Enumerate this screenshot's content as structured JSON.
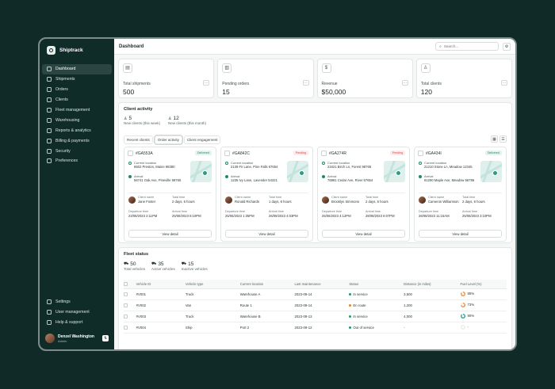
{
  "app": {
    "name": "Shiptrack"
  },
  "sidebar": {
    "items": [
      {
        "label": "Dashboard",
        "icon": "grid-icon"
      },
      {
        "label": "Shipments",
        "icon": "box-icon"
      },
      {
        "label": "Orders",
        "icon": "list-icon"
      },
      {
        "label": "Clients",
        "icon": "user-icon"
      },
      {
        "label": "Fleet management",
        "icon": "truck-icon"
      },
      {
        "label": "Warehousing",
        "icon": "warehouse-icon"
      },
      {
        "label": "Reports & analytics",
        "icon": "chart-icon"
      },
      {
        "label": "Billing & payments",
        "icon": "card-icon"
      },
      {
        "label": "Security",
        "icon": "shield-icon"
      },
      {
        "label": "Preferences",
        "icon": "sliders-icon"
      }
    ],
    "bottom_items": [
      {
        "label": "Settings",
        "icon": "gear-icon"
      },
      {
        "label": "User management",
        "icon": "users-icon"
      },
      {
        "label": "Help & support",
        "icon": "help-icon"
      }
    ],
    "user": {
      "name": "Denzel Washington",
      "role": "Admin"
    }
  },
  "header": {
    "title": "Dashboard",
    "search_placeholder": "Search..."
  },
  "stats": [
    {
      "label": "Total shipments",
      "value": "500"
    },
    {
      "label": "Pending orders",
      "value": "15"
    },
    {
      "label": "Revenue",
      "value": "$50,000"
    },
    {
      "label": "Total clients",
      "value": "120"
    }
  ],
  "activity": {
    "title": "Client activity",
    "counts": [
      {
        "value": "5",
        "label": "New clients (this week)"
      },
      {
        "value": "12",
        "label": "New clients (this month)"
      }
    ],
    "tabs": [
      "Recent clients",
      "Order activity",
      "Client engagement"
    ],
    "orders": [
      {
        "id": "#GA553A",
        "status": "Delivered",
        "current_label": "Current location",
        "current": "6502 Preston, Maine 98380",
        "arrival_label": "Arrival",
        "arrival": "56741 Oak Ave, Pineville 98765",
        "client_label": "Client name",
        "client": "Jane Foster",
        "total_label": "Total time",
        "total": "2 days, 6 hours",
        "departure_label": "Departure time",
        "departure": "23/08/2023 2:11PM",
        "arrival_time_label": "Arrival time",
        "arrival_time": "25/08/2023 8:10PM",
        "button": "View detail"
      },
      {
        "id": "#GA842C",
        "status": "Pending",
        "current_label": "Current location",
        "current": "2139 Fir Lane, Pine Falls 67654",
        "arrival_label": "Arrival",
        "arrival": "1235 Ivy Lane, Lavender 54321",
        "client_label": "Client name",
        "client": "Ronald Richards",
        "total_label": "Total time",
        "total": "1 days, 8 hours",
        "departure_label": "Departure time",
        "departure": "25/06/2023 1:35PM",
        "arrival_time_label": "Arrival time",
        "arrival_time": "26/08/2023 4:03PM",
        "button": "View detail"
      },
      {
        "id": "#GA274R",
        "status": "Pending",
        "current_label": "Current location",
        "current": "23421 Birch Ln, Forest 98765",
        "arrival_label": "Arrival",
        "arrival": "76981 Cedar Ave, River 67654",
        "client_label": "Client name",
        "client": "Brooklyn Simmons",
        "total_label": "Total time",
        "total": "2 days, 6 hours",
        "departure_label": "Departure time",
        "departure": "25/06/2023 4:12PM",
        "arrival_time_label": "Arrival time",
        "arrival_time": "28/08/2023 6:07PM",
        "button": "View detail"
      },
      {
        "id": "#GA434I",
        "status": "Delivered",
        "current_label": "Current location",
        "current": "21210 Stone Ln, Meadow 12345",
        "arrival_label": "Arrival",
        "arrival": "81290 Maple Ave, Meadow 56786",
        "client_label": "Client name",
        "client": "Cameron Williamson",
        "total_label": "Total time",
        "total": "2 days, 6 hours",
        "departure_label": "Departure time",
        "departure": "26/08/2023 11:15AM",
        "arrival_time_label": "Arrival time",
        "arrival_time": "25/08/2023 3:10PM",
        "button": "View detail"
      }
    ]
  },
  "fleet": {
    "title": "Fleet status",
    "counts": [
      {
        "value": "50",
        "label": "Total vehicles"
      },
      {
        "value": "35",
        "label": "Active vehicles"
      },
      {
        "value": "15",
        "label": "Inactive vehicles"
      }
    ],
    "columns": [
      "Vehicle ID",
      "Vehicle type",
      "Current location",
      "Last maintenance",
      "Status",
      "Distance (in miles)",
      "Fuel Level (%)"
    ],
    "rows": [
      {
        "id": "#V001",
        "type": "Truck",
        "location": "Warehouse A",
        "maintenance": "2023-09-14",
        "status": "In service",
        "status_color": "#1f9a6a",
        "distance": "3,500",
        "fuel": "85%",
        "fuel_value": 85,
        "fuel_color": "#e8883a"
      },
      {
        "id": "#V002",
        "type": "Van",
        "location": "Route 1",
        "maintenance": "2023-09-14",
        "status": "En route",
        "status_color": "#e0882a",
        "distance": "1,200",
        "fuel": "73%",
        "fuel_value": 73,
        "fuel_color": "#e8883a"
      },
      {
        "id": "#V003",
        "type": "Truck",
        "location": "Warehouse B",
        "maintenance": "2023-09-13",
        "status": "In service",
        "status_color": "#1f9a6a",
        "distance": "4,000",
        "fuel": "90%",
        "fuel_value": 90,
        "fuel_color": "#1f9a8a"
      },
      {
        "id": "#V004",
        "type": "Ship",
        "location": "Port 2",
        "maintenance": "2023-09-12",
        "status": "Out of service",
        "status_color": "#1f9a6a",
        "distance": "-",
        "fuel": "-",
        "fuel_value": 0,
        "fuel_color": "#cfd5d4"
      }
    ]
  }
}
